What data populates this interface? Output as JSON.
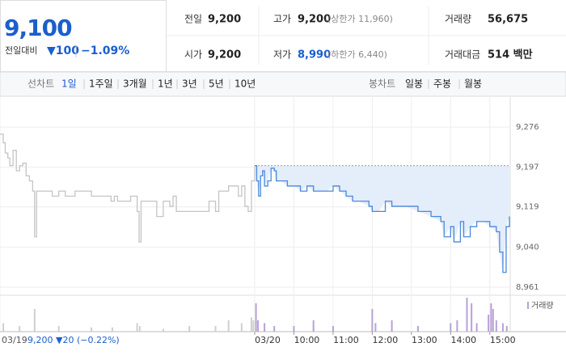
{
  "summary": {
    "price": "9,100",
    "change_label": "전일대비",
    "change": "▼100",
    "change_rate": "−1.09%"
  },
  "quote_table": {
    "rows": [
      [
        {
          "label": "전일",
          "value": "9,200"
        },
        {
          "label": "고가",
          "value": "9,200",
          "note": "(상한가 11,960)"
        },
        {
          "label": "거래량",
          "value": "56,675"
        }
      ],
      [
        {
          "label": "시가",
          "value": "9,200"
        },
        {
          "label": "저가",
          "value": "8,990",
          "note": "(하한가 6,440)"
        },
        {
          "label": "거래대금",
          "value": "514 백만"
        }
      ]
    ]
  },
  "tabs": {
    "line_label": "선차트",
    "line": [
      "1일",
      "1주일",
      "3개월",
      "1년",
      "3년",
      "5년",
      "10년"
    ],
    "candle_label": "봉차트",
    "candle": [
      "일봉",
      "주봉",
      "월봉"
    ],
    "selected": "1일"
  },
  "footer": {
    "date": "03/19",
    "info": "9,200 ▼20 (−0.22%)"
  },
  "chart_data": {
    "type": "line",
    "grid": true,
    "xlim": [
      -390,
      390
    ],
    "ylim": [
      8945,
      9335
    ],
    "yticks": [
      {
        "value": 9276,
        "label": "9,276"
      },
      {
        "value": 9197,
        "label": "9,197"
      },
      {
        "value": 9119,
        "label": "9,119"
      },
      {
        "value": 9040,
        "label": "9,040"
      },
      {
        "value": 8961,
        "label": "8,961"
      }
    ],
    "xticks": [
      {
        "value": 0,
        "label": "03/20"
      },
      {
        "value": 60,
        "label": "10:00"
      },
      {
        "value": 120,
        "label": "11:00"
      },
      {
        "value": 180,
        "label": "12:00"
      },
      {
        "value": 240,
        "label": "13:00"
      },
      {
        "value": 300,
        "label": "14:00"
      },
      {
        "value": 360,
        "label": "15:00"
      }
    ],
    "reference_line": 9200,
    "series": [
      {
        "color": "#c4c4c4",
        "x": [
          -390,
          -385,
          -382,
          -378,
          -375,
          -370,
          -365,
          -360,
          -355,
          -350,
          -345,
          -340,
          -337,
          -334,
          -320,
          -310,
          -300,
          -290,
          -275,
          -260,
          -250,
          -240,
          -230,
          -220,
          -215,
          -210,
          -200,
          -190,
          -180,
          -177,
          -174,
          -160,
          -150,
          -140,
          -130,
          -125,
          -120,
          -100,
          -80,
          -70,
          -60,
          -55,
          -50,
          -40,
          -30,
          -25,
          -20,
          -15,
          -10,
          -5,
          0
        ],
        "values": [
          9262,
          9245,
          9225,
          9215,
          9200,
          9230,
          9190,
          9200,
          9205,
          9180,
          9170,
          9150,
          9060,
          9150,
          9150,
          9140,
          9150,
          9140,
          9150,
          9150,
          9140,
          9140,
          9140,
          9130,
          9140,
          9130,
          9130,
          9140,
          9110,
          9050,
          9130,
          9130,
          9100,
          9130,
          9120,
          9140,
          9110,
          9110,
          9110,
          9130,
          9110,
          9150,
          9150,
          9160,
          9160,
          9140,
          9160,
          9120,
          9110,
          9170,
          9200
        ]
      },
      {
        "color": "#4a88dc",
        "fill": "#e4edfa",
        "x": [
          0,
          3,
          6,
          9,
          12,
          15,
          20,
          25,
          30,
          33,
          40,
          50,
          60,
          70,
          80,
          90,
          110,
          120,
          130,
          140,
          150,
          160,
          175,
          180,
          190,
          200,
          210,
          230,
          250,
          270,
          285,
          290,
          300,
          305,
          315,
          320,
          330,
          340,
          350,
          360,
          370,
          375,
          380,
          385,
          390
        ],
        "values": [
          9200,
          9170,
          9140,
          9180,
          9190,
          9160,
          9170,
          9195,
          9190,
          9170,
          9170,
          9160,
          9160,
          9150,
          9160,
          9150,
          9150,
          9160,
          9150,
          9140,
          9130,
          9130,
          9120,
          9110,
          9110,
          9130,
          9120,
          9120,
          9110,
          9100,
          9090,
          9060,
          9080,
          9050,
          9090,
          9060,
          9080,
          9090,
          9090,
          9080,
          9070,
          9030,
          8990,
          9080,
          9100
        ]
      }
    ],
    "volume": {
      "name": "거래량",
      "color": "#b8a2d6",
      "x": [
        -385,
        -360,
        -337,
        -300,
        -250,
        -218,
        -180,
        -176,
        -140,
        -100,
        -60,
        -40,
        -20,
        -5,
        -2,
        2,
        5,
        15,
        30,
        60,
        90,
        120,
        180,
        185,
        210,
        250,
        300,
        310,
        325,
        332,
        340,
        358,
        362,
        365,
        370,
        380,
        386
      ],
      "values": [
        3,
        2,
        8,
        2,
        1.5,
        1.5,
        3,
        2,
        1,
        2,
        2,
        4,
        3,
        5,
        4,
        10,
        4,
        3,
        2,
        2,
        4,
        2,
        8,
        3,
        4,
        2,
        3,
        4,
        12,
        10,
        3,
        6,
        10,
        8,
        4,
        3,
        2
      ]
    }
  }
}
